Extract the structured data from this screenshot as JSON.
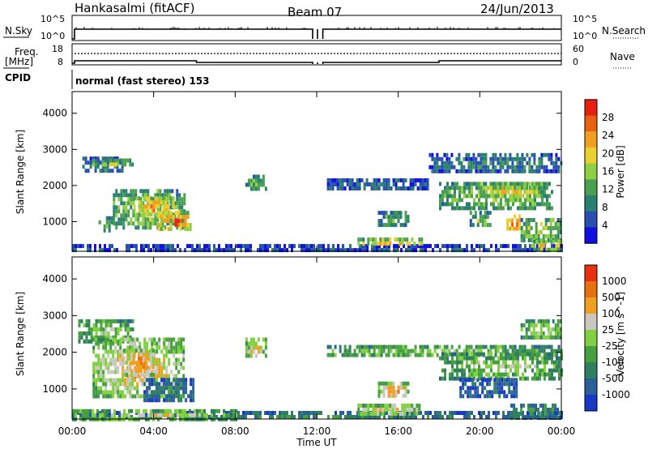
{
  "header": {
    "station": "Hankasalmi (fitACF)",
    "beam": "Beam 07",
    "date": "24/Jun/2013"
  },
  "strip_labels": {
    "nsky": "N.Sky",
    "nsearch": "N.Search",
    "freq_line1": "Freq.",
    "freq_line2": "[MHz]",
    "nave": "Nave",
    "cpid": "CPID",
    "mode": "normal (fast stereo) 153",
    "nsky_ticks": [
      "10^5",
      "10^0"
    ],
    "nsearch_ticks": [
      "10^5",
      "10^0"
    ],
    "freq_ticks": [
      "18",
      "8"
    ],
    "nave_ticks": [
      "60",
      "0"
    ]
  },
  "x_axis": {
    "label": "Time UT",
    "ticks": [
      "00:00",
      "04:00",
      "08:00",
      "12:00",
      "16:00",
      "20:00",
      "00:00"
    ],
    "range_hours": [
      0,
      24
    ]
  },
  "chart_data": [
    {
      "type": "heatmap",
      "id": "power",
      "ylabel": "Slant Range [km]",
      "ylim": [
        180,
        4600
      ],
      "yticks": [
        1000,
        2000,
        3000,
        4000
      ],
      "colorbar_label": "Power [dB]",
      "colorbar_ticks": [
        "4",
        "8",
        "12",
        "16",
        "20",
        "24",
        "28"
      ],
      "colorbar_colors": [
        "#1010e0",
        "#2850b0",
        "#2a8070",
        "#4aa050",
        "#90d040",
        "#e8d030",
        "#f0a020",
        "#e86010",
        "#e82010"
      ],
      "blobs": [
        {
          "t": [
            0.5,
            2.5
          ],
          "r": [
            2450,
            2800
          ],
          "level": 0.35
        },
        {
          "t": [
            1.0,
            3.0
          ],
          "r": [
            2550,
            2750
          ],
          "level": 0.55
        },
        {
          "t": [
            2.0,
            5.5
          ],
          "r": [
            800,
            1900
          ],
          "level": 0.55
        },
        {
          "t": [
            3.0,
            5.0
          ],
          "r": [
            1200,
            1700
          ],
          "level": 0.8
        },
        {
          "t": [
            4.2,
            5.8
          ],
          "r": [
            800,
            1300
          ],
          "level": 0.9
        },
        {
          "t": [
            1.3,
            2.0
          ],
          "r": [
            750,
            1150
          ],
          "level": 0.45
        },
        {
          "t": [
            8.5,
            9.5
          ],
          "r": [
            1900,
            2300
          ],
          "level": 0.45
        },
        {
          "t": [
            0.0,
            24.0
          ],
          "r": [
            200,
            380
          ],
          "level": 0.2
        },
        {
          "t": [
            14.0,
            17.2
          ],
          "r": [
            380,
            560
          ],
          "level": 0.75
        },
        {
          "t": [
            12.5,
            17.5
          ],
          "r": [
            1900,
            2200
          ],
          "level": 0.25
        },
        {
          "t": [
            15.0,
            16.5
          ],
          "r": [
            900,
            1300
          ],
          "level": 0.45
        },
        {
          "t": [
            18.0,
            23.5
          ],
          "r": [
            1400,
            2100
          ],
          "level": 0.55
        },
        {
          "t": [
            20.0,
            23.0
          ],
          "r": [
            1700,
            2100
          ],
          "level": 0.7
        },
        {
          "t": [
            21.3,
            22.0
          ],
          "r": [
            800,
            1200
          ],
          "level": 0.95
        },
        {
          "t": [
            22.0,
            24.0
          ],
          "r": [
            500,
            1100
          ],
          "level": 0.6
        },
        {
          "t": [
            22.5,
            24.0
          ],
          "r": [
            250,
            500
          ],
          "level": 0.7
        },
        {
          "t": [
            17.5,
            24.0
          ],
          "r": [
            2400,
            2900
          ],
          "level": 0.3
        },
        {
          "t": [
            19.5,
            20.5
          ],
          "r": [
            900,
            1300
          ],
          "level": 0.5
        }
      ]
    },
    {
      "type": "heatmap",
      "id": "velocity",
      "ylabel": "Slant Range [km]",
      "ylim": [
        180,
        4600
      ],
      "yticks": [
        1000,
        2000,
        3000,
        4000
      ],
      "colorbar_label": "Velocity [m s^-1]",
      "colorbar_ticks": [
        "1000",
        "500",
        "100",
        "25",
        "-25",
        "-100",
        "-500",
        "-1000"
      ],
      "colorbar_colors": [
        "#1838c8",
        "#2a6098",
        "#2e8060",
        "#46a040",
        "#80d040",
        "#c8c8c0",
        "#f0a020",
        "#e87010",
        "#e83010"
      ],
      "blobs": [
        {
          "t": [
            0.3,
            3.0
          ],
          "r": [
            2300,
            2900
          ],
          "level": 0.55
        },
        {
          "t": [
            1.0,
            5.5
          ],
          "r": [
            800,
            2400
          ],
          "level": 0.75
        },
        {
          "t": [
            3.5,
            6.0
          ],
          "r": [
            700,
            1300
          ],
          "level": 0.3
        },
        {
          "t": [
            2.5,
            4.0
          ],
          "r": [
            1400,
            2100
          ],
          "level": 0.85
        },
        {
          "t": [
            0.0,
            24.0
          ],
          "r": [
            200,
            400
          ],
          "level": 0.3
        },
        {
          "t": [
            0.0,
            8.0
          ],
          "r": [
            220,
            450
          ],
          "level": 0.65
        },
        {
          "t": [
            8.5,
            9.5
          ],
          "r": [
            1900,
            2400
          ],
          "level": 0.75
        },
        {
          "t": [
            14.0,
            17.0
          ],
          "r": [
            350,
            600
          ],
          "level": 0.7
        },
        {
          "t": [
            12.5,
            24.0
          ],
          "r": [
            1900,
            2200
          ],
          "level": 0.55
        },
        {
          "t": [
            18.0,
            24.0
          ],
          "r": [
            1300,
            2000
          ],
          "level": 0.55
        },
        {
          "t": [
            19.0,
            21.8
          ],
          "r": [
            800,
            1300
          ],
          "level": 0.2
        },
        {
          "t": [
            21.5,
            24.0
          ],
          "r": [
            250,
            600
          ],
          "level": 0.35
        },
        {
          "t": [
            22.0,
            24.0
          ],
          "r": [
            2400,
            2900
          ],
          "level": 0.55
        },
        {
          "t": [
            15.0,
            16.5
          ],
          "r": [
            800,
            1200
          ],
          "level": 0.8
        }
      ]
    }
  ]
}
